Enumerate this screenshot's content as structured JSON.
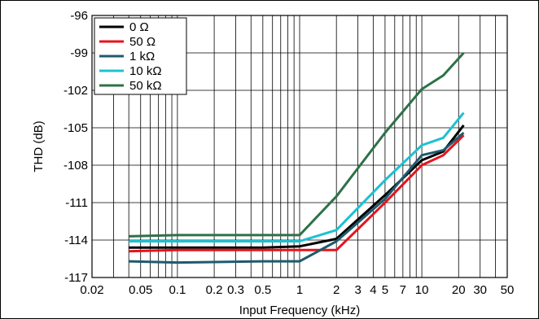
{
  "chart_data": {
    "type": "line",
    "title": "",
    "xlabel": "Input Frequency (kHz)",
    "ylabel": "THD (dB)",
    "x_scale": "log",
    "xlim": [
      0.02,
      50
    ],
    "ylim": [
      -117,
      -96
    ],
    "grid": true,
    "legend_position": "top-left",
    "x_ticks": [
      0.02,
      0.05,
      0.1,
      0.2,
      0.3,
      0.5,
      1,
      2,
      3,
      4,
      5,
      7,
      10,
      20,
      30,
      50
    ],
    "x_tick_labels": [
      "0.02",
      "0.05",
      "0.1",
      "0.2",
      "0.3",
      "0.5",
      "1",
      "2",
      "3",
      "4",
      "5",
      "7",
      "10",
      "20",
      "30",
      "50"
    ],
    "y_ticks": [
      -96,
      -99,
      -102,
      -105,
      -108,
      -111,
      -114,
      -117
    ],
    "y_tick_labels": [
      "-96",
      "-99",
      "-102",
      "-105",
      "-108",
      "-111",
      "-114",
      "-117"
    ],
    "series": [
      {
        "name": "0 Ω",
        "color": "#000000",
        "x": [
          0.04,
          0.1,
          0.5,
          1,
          2,
          5,
          10,
          15,
          22
        ],
        "y": [
          -114.6,
          -114.6,
          -114.6,
          -114.5,
          -113.9,
          -110.4,
          -107.6,
          -106.9,
          -104.8
        ]
      },
      {
        "name": "50 Ω",
        "color": "#e8131b",
        "x": [
          0.04,
          0.1,
          0.5,
          1,
          2,
          5,
          10,
          15,
          22
        ],
        "y": [
          -114.9,
          -114.8,
          -114.8,
          -114.8,
          -114.8,
          -111.0,
          -108.0,
          -107.2,
          -105.6
        ]
      },
      {
        "name": "1 kΩ",
        "color": "#1f5a6e",
        "x": [
          0.04,
          0.1,
          0.5,
          1,
          2,
          5,
          10,
          15,
          22
        ],
        "y": [
          -115.7,
          -115.8,
          -115.7,
          -115.7,
          -114.1,
          -110.7,
          -107.2,
          -106.8,
          -105.4
        ]
      },
      {
        "name": "10 kΩ",
        "color": "#1cc1d2",
        "x": [
          0.04,
          0.1,
          0.5,
          1,
          2,
          5,
          10,
          15,
          22
        ],
        "y": [
          -114.1,
          -114.1,
          -114.1,
          -114.1,
          -113.2,
          -109.2,
          -106.4,
          -105.8,
          -103.8
        ]
      },
      {
        "name": "50 kΩ",
        "color": "#2e7148",
        "x": [
          0.04,
          0.1,
          0.5,
          1,
          2,
          5,
          10,
          15,
          22
        ],
        "y": [
          -113.7,
          -113.6,
          -113.6,
          -113.6,
          -110.5,
          -105.4,
          -101.9,
          -100.8,
          -99.0
        ]
      }
    ]
  }
}
